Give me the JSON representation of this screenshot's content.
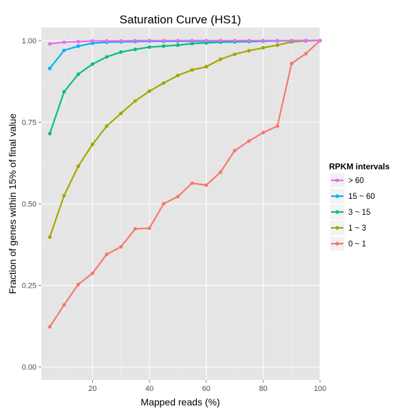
{
  "chart_data": {
    "type": "line",
    "title": "Saturation Curve (HS1)",
    "xlabel": "Mapped reads (%)",
    "ylabel": "Fraction of genes within 15% of final value",
    "xlim": [
      2,
      100
    ],
    "ylim": [
      -0.04,
      1.04
    ],
    "x_ticks": [
      20,
      40,
      60,
      80,
      100
    ],
    "y_ticks": [
      0.0,
      0.25,
      0.5,
      0.75,
      1.0
    ],
    "x_tick_labels": [
      "20",
      "40",
      "60",
      "80",
      "100"
    ],
    "y_tick_labels": [
      "0.00",
      "0.25",
      "0.50",
      "0.75",
      "1.00"
    ],
    "grid": true,
    "legend": {
      "title": "RPKM intervals",
      "position": "right"
    },
    "x": [
      5,
      10,
      15,
      20,
      25,
      30,
      35,
      40,
      45,
      50,
      55,
      60,
      65,
      70,
      75,
      80,
      85,
      90,
      95,
      100
    ],
    "series": [
      {
        "name": "> 60",
        "color": "#E76BF3",
        "values": [
          0.99,
          0.995,
          0.997,
          0.999,
          0.999,
          0.999,
          1.0,
          1.0,
          1.0,
          1.0,
          1.0,
          1.0,
          1.0,
          1.0,
          1.0,
          1.0,
          1.0,
          1.0,
          1.0,
          1.0
        ]
      },
      {
        "name": "15 ~ 60",
        "color": "#00B0F6",
        "values": [
          0.915,
          0.97,
          0.983,
          0.992,
          0.995,
          0.996,
          0.997,
          0.998,
          0.998,
          0.998,
          0.998,
          0.998,
          0.999,
          0.999,
          0.999,
          0.999,
          0.999,
          1.0,
          1.0,
          1.0
        ]
      },
      {
        "name": "3 ~ 15",
        "color": "#00BF7D",
        "values": [
          0.715,
          0.843,
          0.897,
          0.928,
          0.95,
          0.965,
          0.973,
          0.98,
          0.983,
          0.986,
          0.991,
          0.993,
          0.995,
          0.996,
          0.997,
          0.998,
          0.999,
          0.999,
          1.0,
          1.0
        ]
      },
      {
        "name": "1 ~ 3",
        "color": "#A3A500",
        "values": [
          0.398,
          0.525,
          0.615,
          0.682,
          0.738,
          0.777,
          0.815,
          0.845,
          0.87,
          0.893,
          0.91,
          0.92,
          0.943,
          0.958,
          0.969,
          0.978,
          0.986,
          0.996,
          0.999,
          1.0
        ]
      },
      {
        "name": "0 ~ 1",
        "color": "#F8766D",
        "values": [
          0.123,
          0.19,
          0.253,
          0.287,
          0.345,
          0.368,
          0.423,
          0.425,
          0.5,
          0.522,
          0.563,
          0.557,
          0.597,
          0.663,
          0.692,
          0.718,
          0.738,
          0.93,
          0.96,
          1.0
        ]
      }
    ]
  }
}
